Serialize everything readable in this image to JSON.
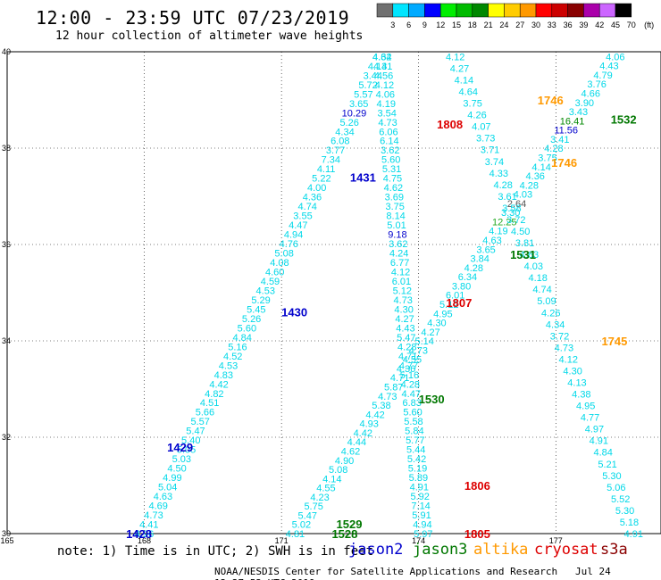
{
  "title": "12:00 - 23:59 UTC 07/23/2019",
  "subtitle": "12 hour collection of altimeter wave heights",
  "note": "note: 1) Time is in UTC; 2) SWH is in feet",
  "footer": {
    "agency": "NOAA/NESDIS Center for Satellite Applications and Research",
    "timestamp": "Jul 24 12:27:52 UTC 2019"
  },
  "legend": [
    {
      "name": "jason2",
      "color": "#0000cc"
    },
    {
      "name": "jason3",
      "color": "#007700"
    },
    {
      "name": "altika",
      "color": "#ff9900"
    },
    {
      "name": "cryosat",
      "color": "#dd0000"
    },
    {
      "name": "s3a",
      "color": "#8b0000"
    }
  ],
  "colorbar": {
    "labels": [
      "3",
      "6",
      "9",
      "12",
      "15",
      "18",
      "21",
      "24",
      "27",
      "30",
      "33",
      "36",
      "39",
      "42",
      "45",
      "70",
      "(ft)"
    ],
    "colors": [
      "#707070",
      "#00e5ff",
      "#00aaff",
      "#0000ff",
      "#00ee00",
      "#00bb00",
      "#008800",
      "#ffff00",
      "#ffcc00",
      "#ff9900",
      "#ff0000",
      "#cc0000",
      "#880000",
      "#aa00aa",
      "#cc66ff",
      "#000000"
    ]
  },
  "axes": {
    "lon_labels": [
      "165",
      "168",
      "171",
      "174",
      "177"
    ],
    "lat_labels": [
      "40",
      "38",
      "36",
      "34",
      "32",
      "30"
    ],
    "lon_range": [
      165,
      179.3
    ],
    "lat_range": [
      30,
      40
    ]
  },
  "tracks": {
    "track_1428_1431": {
      "start": [
        168.0,
        30.0
      ],
      "end": [
        173.2,
        39.9
      ],
      "values": [
        "4.96",
        "4.41",
        "4.73",
        "4.69",
        "4.63",
        "5.04",
        "4.99",
        "4.50",
        "5.03",
        "5.05",
        "5.40",
        "5.47",
        "5.57",
        "5.66",
        "4.51",
        "4.82",
        "4.42",
        "4.83",
        "4.53",
        "4.52",
        "5.16",
        "4.84",
        "5.60",
        "5.26",
        "5.45",
        "5.29",
        "4.53",
        "4.59",
        "4.60",
        "4.08",
        "5.08",
        "4.76",
        "4.94",
        "4.47",
        "3.55",
        "4.74",
        "4.36",
        "4.00",
        "5.22",
        "4.11",
        "7.34",
        "3.77",
        "6.08",
        "4.34",
        "5.26",
        "10.29",
        "3.65",
        "5.57",
        "5.72",
        "3.44",
        "4.13",
        "4.64"
      ]
    },
    "track_1805_1808": {
      "start": [
        174.1,
        30.0
      ],
      "end": [
        173.2,
        39.9
      ],
      "values": [
        "5.97",
        "4.94",
        "5.91",
        "7.14",
        "5.92",
        "4.91",
        "5.89",
        "5.19",
        "5.42",
        "5.44",
        "5.77",
        "5.84",
        "5.58",
        "5.60",
        "6.83",
        "4.47",
        "4.28",
        "5.16",
        "4.77",
        "4.71",
        "4.28",
        "5.47",
        "4.43",
        "4.27",
        "4.30",
        "4.73",
        "5.12",
        "6.01",
        "4.12",
        "6.77",
        "4.24",
        "3.62",
        "9.18",
        "5.01",
        "8.14",
        "3.75",
        "3.69",
        "4.62",
        "4.75",
        "5.31",
        "5.60",
        "3.62",
        "6.14",
        "6.06",
        "4.73",
        "3.54",
        "4.19",
        "4.06",
        "4.12",
        "4.56",
        "4.41",
        "4.32"
      ]
    },
    "track_1528_1532": {
      "start": [
        171.3,
        30.0
      ],
      "end": [
        178.3,
        39.9
      ],
      "values": [
        "4.81",
        "5.02",
        "5.47",
        "5.75",
        "4.23",
        "4.55",
        "4.14",
        "5.08",
        "4.90",
        "4.62",
        "4.44",
        "4.42",
        "4.93",
        "4.42",
        "5.38",
        "4.73",
        "5.87",
        "4.71",
        "4.36",
        "4.55",
        "4.73",
        "5.14",
        "4.27",
        "4.30",
        "4.95",
        "5.12",
        "6.01",
        "3.80",
        "6.34",
        "4.28",
        "3.84",
        "3.65",
        "4.63",
        "4.19",
        "12.25",
        "3.30",
        "2.64",
        "4.03",
        "4.28",
        "4.36",
        "4.14",
        "3.75",
        "4.28",
        "3.41",
        "11.56",
        "16.41",
        "3.43",
        "3.90",
        "4.66",
        "3.76",
        "4.79",
        "4.43",
        "4.06"
      ]
    },
    "track_1745_1746": {
      "start": [
        178.7,
        30.0
      ],
      "end": [
        174.8,
        39.9
      ],
      "values": [
        "4.91",
        "5.18",
        "5.30",
        "5.52",
        "5.06",
        "5.30",
        "5.21",
        "4.84",
        "4.91",
        "4.97",
        "4.77",
        "4.95",
        "4.38",
        "4.13",
        "4.30",
        "4.12",
        "4.73",
        "3.72",
        "4.34",
        "4.26",
        "5.09",
        "4.74",
        "4.18",
        "4.03",
        "4.63",
        "3.81",
        "4.50",
        "3.72",
        "3.58",
        "3.61",
        "4.28",
        "4.33",
        "3.74",
        "3.71",
        "3.73",
        "4.07",
        "4.26",
        "3.75",
        "4.64",
        "4.14",
        "4.27",
        "4.12"
      ]
    }
  },
  "time_labels": [
    {
      "text": "1428",
      "sat": "jason2",
      "lon": 167.6,
      "lat": 30.0
    },
    {
      "text": "1429",
      "sat": "jason2",
      "lon": 168.5,
      "lat": 31.8
    },
    {
      "text": "1430",
      "sat": "jason2",
      "lon": 171.0,
      "lat": 34.6
    },
    {
      "text": "1431",
      "sat": "jason2",
      "lon": 172.5,
      "lat": 37.4
    },
    {
      "text": "1528",
      "sat": "jason3",
      "lon": 172.1,
      "lat": 30.0
    },
    {
      "text": "1529",
      "sat": "jason3",
      "lon": 172.2,
      "lat": 30.2
    },
    {
      "text": "1530",
      "sat": "jason3",
      "lon": 174.0,
      "lat": 32.8
    },
    {
      "text": "1531",
      "sat": "jason3",
      "lon": 176.0,
      "lat": 35.8
    },
    {
      "text": "1532",
      "sat": "jason3",
      "lon": 178.2,
      "lat": 38.6
    },
    {
      "text": "1745",
      "sat": "altika",
      "lon": 178.0,
      "lat": 34.0
    },
    {
      "text": "1746",
      "sat": "altika",
      "lon": 176.9,
      "lat": 37.7
    },
    {
      "text": "1746",
      "sat": "altika",
      "lon": 176.6,
      "lat": 39.0
    },
    {
      "text": "1805",
      "sat": "cryosat",
      "lon": 175.0,
      "lat": 30.0
    },
    {
      "text": "1806",
      "sat": "cryosat",
      "lon": 175.0,
      "lat": 31.0
    },
    {
      "text": "1807",
      "sat": "cryosat",
      "lon": 174.6,
      "lat": 34.8
    },
    {
      "text": "1808",
      "sat": "cryosat",
      "lon": 174.4,
      "lat": 38.5
    }
  ]
}
